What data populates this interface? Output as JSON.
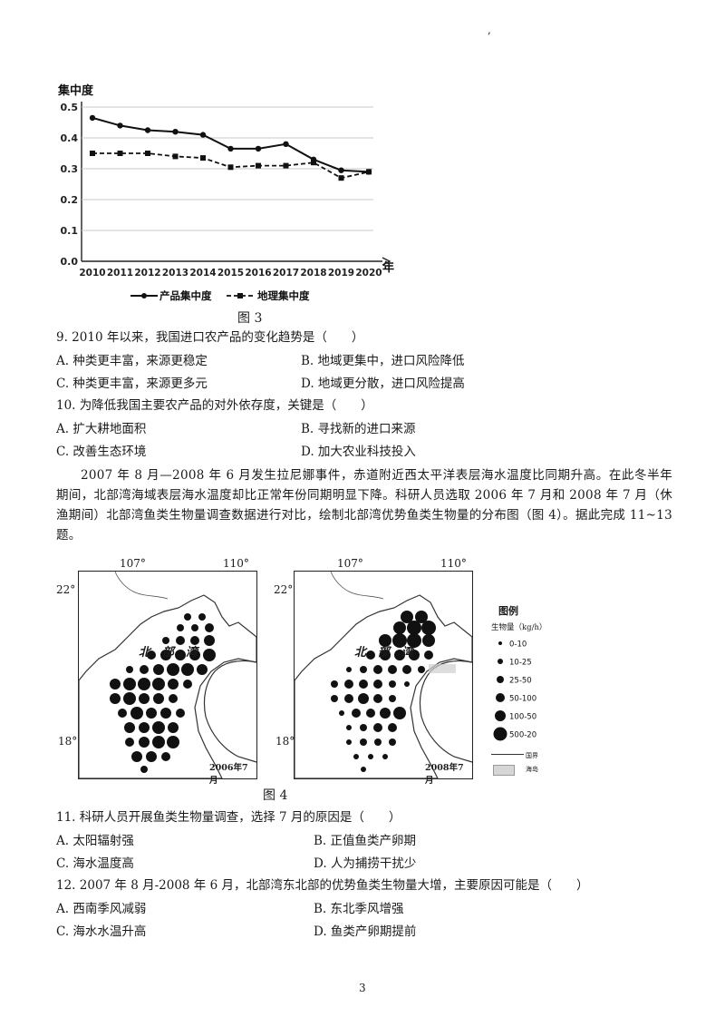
{
  "header_mark": ",",
  "figure3": {
    "caption": "图 3",
    "chart_data": {
      "type": "line",
      "ylabel": "集中度",
      "xlabel": "年",
      "ylim": [
        0,
        0.5
      ],
      "yticks": [
        "0.0",
        "0.1",
        "0.2",
        "0.3",
        "0.4",
        "0.5"
      ],
      "x": [
        "2010",
        "2011",
        "2012",
        "2013",
        "2014",
        "2015",
        "2016",
        "2017",
        "2018",
        "2019",
        "2020"
      ],
      "series": [
        {
          "name": "产品集中度",
          "values": [
            0.465,
            0.44,
            0.425,
            0.42,
            0.41,
            0.365,
            0.365,
            0.38,
            0.33,
            0.295,
            0.29
          ]
        },
        {
          "name": "地理集中度",
          "values": [
            0.35,
            0.35,
            0.35,
            0.34,
            0.335,
            0.305,
            0.31,
            0.31,
            0.32,
            0.27,
            0.29
          ]
        }
      ],
      "grid": true,
      "legend": "bottom"
    }
  },
  "q9": {
    "stem": "9. 2010 年以来，我国进口农产品的变化趋势是（　　）",
    "A": "A. 种类更丰富，来源更稳定",
    "B": "B. 地域更集中，进口风险降低",
    "C": "C. 种类更丰富，来源更多元",
    "D": "D. 地域更分散，进口风险提高"
  },
  "q10": {
    "stem": "10. 为降低我国主要农产品的对外依存度，关键是（　　）",
    "A": "A. 扩大耕地面积",
    "B": "B. 寻找新的进口来源",
    "C": "C. 改善生态环境",
    "D": "D. 加大农业科技投入"
  },
  "passage": "2007 年 8 月—2008 年 6 月发生拉尼娜事件，赤道附近西太平洋表层海水温度比同期升高。在此冬半年期间，北部湾海域表层海水温度却比正常年份同期明显下降。科研人员选取 2006 年 7 月和 2008 年 7 月（休渔期间）北部湾鱼类生物量调查数据进行对比，绘制北部湾优势鱼类生物量的分布图（图 4）。据此完成 11~13 题。",
  "figure4": {
    "caption": "图 4",
    "map_left": {
      "lon1": "107°",
      "lon2": "110°",
      "lat1": "22°",
      "lat2": "18°",
      "label": "北　部　湾",
      "date": "2006年7月"
    },
    "map_right": {
      "lon1": "107°",
      "lon2": "110°",
      "lat1": "22°",
      "lat2": "18°",
      "label": "北　部　湾",
      "date": "2008年7月"
    },
    "legend": {
      "title": "图例",
      "subtitle": "生物量（kg/h）",
      "items": [
        "0-10",
        "10-25",
        "25-50",
        "50-100",
        "100-50",
        "500-20"
      ],
      "border": "国界",
      "island": "海岛"
    }
  },
  "q11": {
    "stem": "11. 科研人员开展鱼类生物量调查，选择 7 月的原因是（　　）",
    "A": "A. 太阳辐射强",
    "B": "B. 正值鱼类产卵期",
    "C": "C. 海水温度高",
    "D": "D. 人为捕捞干扰少"
  },
  "q12": {
    "stem": "12. 2007 年 8 月-2008 年 6 月，北部湾东北部的优势鱼类生物量大增，主要原因可能是（　　）",
    "A": "A. 西南季风减弱",
    "B": "B. 东北季风增强",
    "C": "C. 海水水温升高",
    "D": "D. 鱼类产卵期提前"
  },
  "page_number": "3"
}
